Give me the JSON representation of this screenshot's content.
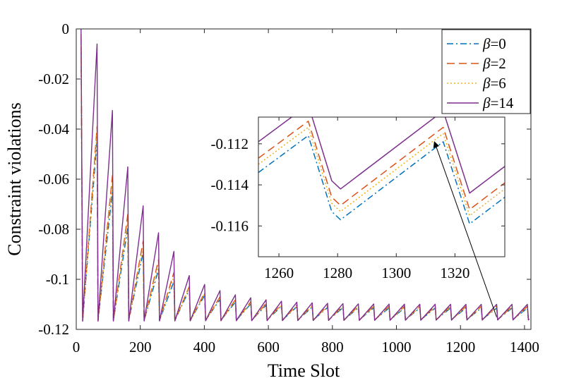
{
  "chart_data": {
    "type": "line",
    "title": "",
    "xlabel": "Time Slot",
    "ylabel": "Constraint violations",
    "xlim": [
      0,
      1420
    ],
    "ylim": [
      -0.12,
      0
    ],
    "xticks": [
      0,
      200,
      400,
      600,
      800,
      1000,
      1200,
      1400
    ],
    "xtick_labels": [
      "0",
      "200",
      "400",
      "600",
      "800",
      "1000",
      "1200",
      "1400"
    ],
    "yticks": [
      0,
      -0.02,
      -0.04,
      -0.06,
      -0.08,
      -0.1,
      -0.12
    ],
    "ytick_labels": [
      "0",
      "-0.02",
      "-0.04",
      "-0.06",
      "-0.08",
      "-0.1",
      "-0.12"
    ],
    "grid": false,
    "legend_position": "top-right",
    "series": [
      {
        "name": "β=0",
        "label_prefix": "β",
        "label_suffix": "=0",
        "color": "#0072BD",
        "dash": "dashdot",
        "offset": 0.0,
        "start_value": -0.004,
        "first_peak": -0.044
      },
      {
        "name": "β=2",
        "label_prefix": "β",
        "label_suffix": "=2",
        "color": "#D95319",
        "dash": "dashed",
        "offset": 0.0007,
        "start_value": -0.002,
        "first_peak": -0.039
      },
      {
        "name": "β=6",
        "label_prefix": "β",
        "label_suffix": "=6",
        "color": "#EDB120",
        "dash": "dotted",
        "offset": 0.0004,
        "start_value": -0.003,
        "first_peak": -0.041
      },
      {
        "name": "β=14",
        "label_prefix": "β",
        "label_suffix": "=14",
        "color": "#7E2F8E",
        "dash": "solid",
        "offset": 0.0015,
        "start_value": 0.0,
        "first_peak": -0.006
      }
    ],
    "sawtooth": {
      "first_reset": 20,
      "first_period": 45,
      "period_ratio": 0.955,
      "min_period": 45,
      "descent_fraction": 0.18,
      "trough_start": -0.1165,
      "trough_end": -0.116,
      "peak_asymptote": -0.1115,
      "peak_decay_slots": 130
    },
    "inset": {
      "xlim": [
        1253,
        1337
      ],
      "ylim": [
        -0.1175,
        -0.1107
      ],
      "xticks": [
        1260,
        1280,
        1300,
        1320
      ],
      "xtick_labels": [
        "1260",
        "1280",
        "1300",
        "1320"
      ],
      "yticks": [
        -0.112,
        -0.114,
        -0.116
      ],
      "ytick_labels": [
        "-0.112",
        "-0.114",
        "-0.116"
      ],
      "base_series": [
        {
          "x": 1253,
          "y": -0.1134
        },
        {
          "x": 1270,
          "y": -0.1116
        },
        {
          "x": 1278,
          "y": -0.1153
        },
        {
          "x": 1281,
          "y": -0.1157
        },
        {
          "x": 1316,
          "y": -0.1119
        },
        {
          "x": 1325,
          "y": -0.1159
        },
        {
          "x": 1337,
          "y": -0.1146
        }
      ],
      "arrow_target": {
        "x": 1313,
        "y": -0.1119
      },
      "arrow_origin": {
        "x": 1313,
        "y": -0.1151
      }
    }
  }
}
